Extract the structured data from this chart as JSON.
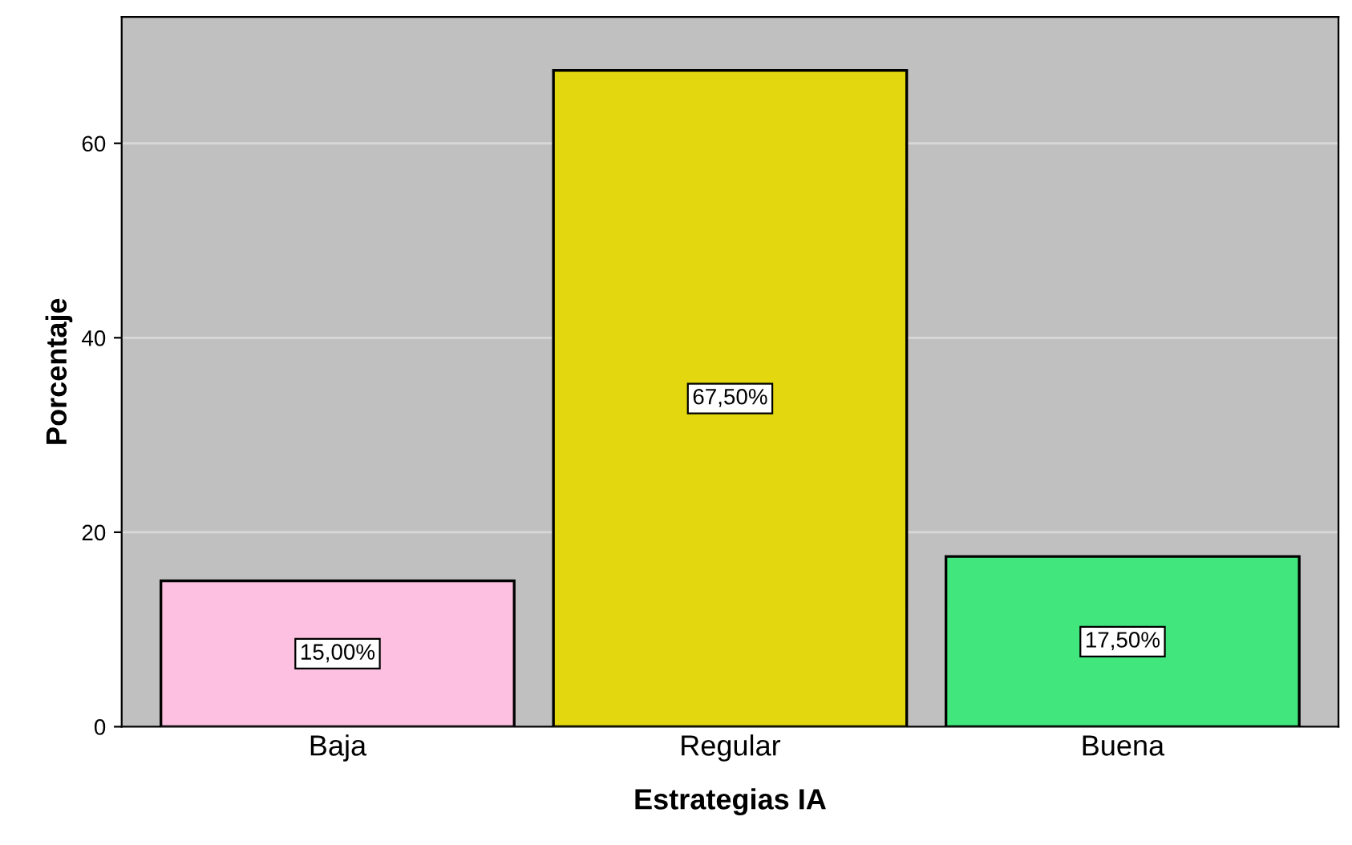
{
  "chart_data": {
    "type": "bar",
    "xlabel": "Estrategias IA",
    "ylabel": "Porcentaje",
    "categories": [
      "Baja",
      "Regular",
      "Buena"
    ],
    "values": [
      15,
      67.5,
      17.5
    ],
    "colors": [
      "#fdc0e0",
      "#e3d70f",
      "#41e67c"
    ],
    "value_labels": [
      "15,00%",
      "67,50%",
      "17,50%"
    ],
    "ylim": [
      0,
      73
    ],
    "yticks": [
      0,
      20,
      40,
      60
    ],
    "grid": "y"
  }
}
